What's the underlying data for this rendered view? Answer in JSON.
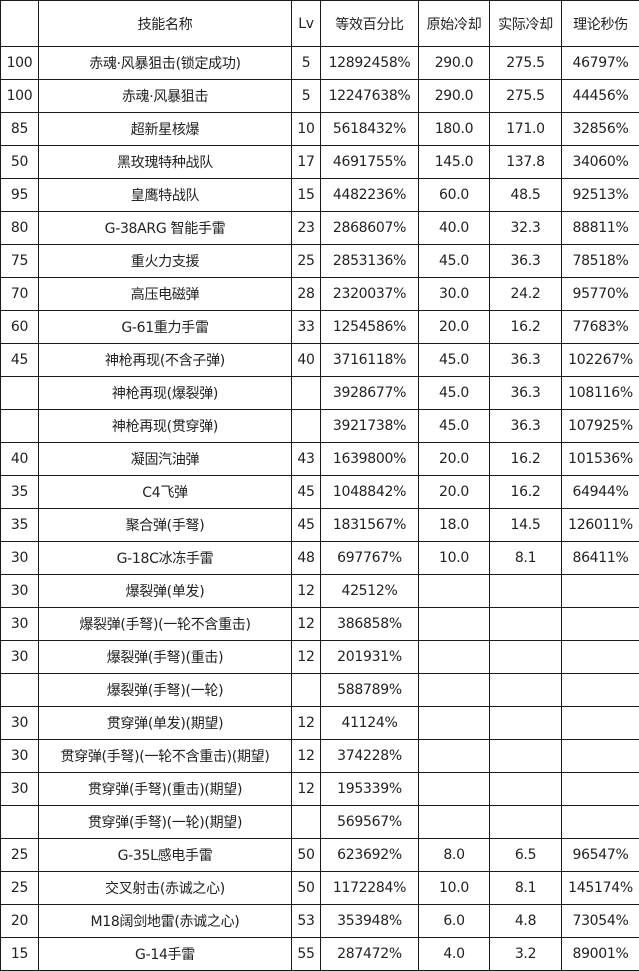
{
  "table": {
    "headers": [
      "",
      "技能名称",
      "Lv",
      "等效百分比",
      "原始冷却",
      "实际冷却",
      "理论秒伤"
    ],
    "rows": [
      [
        "100",
        "赤魂·风暴狙击(锁定成功)",
        "5",
        "12892458%",
        "290.0",
        "275.5",
        "46797%"
      ],
      [
        "100",
        "赤魂·风暴狙击",
        "5",
        "12247638%",
        "290.0",
        "275.5",
        "44456%"
      ],
      [
        "85",
        "超新星核爆",
        "10",
        "5618432%",
        "180.0",
        "171.0",
        "32856%"
      ],
      [
        "50",
        "黑玫瑰特种战队",
        "17",
        "4691755%",
        "145.0",
        "137.8",
        "34060%"
      ],
      [
        "95",
        "皇鹰特战队",
        "15",
        "4482236%",
        "60.0",
        "48.5",
        "92513%"
      ],
      [
        "80",
        "G-38ARG 智能手雷",
        "23",
        "2868607%",
        "40.0",
        "32.3",
        "88811%"
      ],
      [
        "75",
        "重火力支援",
        "25",
        "2853136%",
        "45.0",
        "36.3",
        "78518%"
      ],
      [
        "70",
        "高压电磁弹",
        "28",
        "2320037%",
        "30.0",
        "24.2",
        "95770%"
      ],
      [
        "60",
        "G-61重力手雷",
        "33",
        "1254586%",
        "20.0",
        "16.2",
        "77683%"
      ],
      [
        "45",
        "神枪再现(不含子弹)",
        "40",
        "3716118%",
        "45.0",
        "36.3",
        "102267%"
      ],
      [
        "",
        "神枪再现(爆裂弹)",
        "",
        "3928677%",
        "45.0",
        "36.3",
        "108116%"
      ],
      [
        "",
        "神枪再现(贯穿弹)",
        "",
        "3921738%",
        "45.0",
        "36.3",
        "107925%"
      ],
      [
        "40",
        "凝固汽油弹",
        "43",
        "1639800%",
        "20.0",
        "16.2",
        "101536%"
      ],
      [
        "35",
        "C4飞弹",
        "45",
        "1048842%",
        "20.0",
        "16.2",
        "64944%"
      ],
      [
        "35",
        "聚合弹(手弩)",
        "45",
        "1831567%",
        "18.0",
        "14.5",
        "126011%"
      ],
      [
        "30",
        "G-18C冰冻手雷",
        "48",
        "697767%",
        "10.0",
        "8.1",
        "86411%"
      ],
      [
        "30",
        "爆裂弹(单发)",
        "12",
        "42512%",
        "",
        "",
        ""
      ],
      [
        "30",
        "爆裂弹(手弩)(一轮不含重击)",
        "12",
        "386858%",
        "",
        "",
        ""
      ],
      [
        "30",
        "爆裂弹(手弩)(重击)",
        "12",
        "201931%",
        "",
        "",
        ""
      ],
      [
        "",
        "爆裂弹(手弩)(一轮)",
        "",
        "588789%",
        "",
        "",
        ""
      ],
      [
        "30",
        "贯穿弹(单发)(期望)",
        "12",
        "41124%",
        "",
        "",
        ""
      ],
      [
        "30",
        "贯穿弹(手弩)(一轮不含重击)(期望)",
        "12",
        "374228%",
        "",
        "",
        ""
      ],
      [
        "30",
        "贯穿弹(手弩)(重击)(期望)",
        "12",
        "195339%",
        "",
        "",
        ""
      ],
      [
        "",
        "贯穿弹(手弩)(一轮)(期望)",
        "",
        "569567%",
        "",
        "",
        ""
      ],
      [
        "25",
        "G-35L感电手雷",
        "50",
        "623692%",
        "8.0",
        "6.5",
        "96547%"
      ],
      [
        "25",
        "交叉射击(赤诚之心)",
        "50",
        "1172284%",
        "10.0",
        "8.1",
        "145174%"
      ],
      [
        "20",
        "M18阔剑地雷(赤诚之心)",
        "53",
        "353948%",
        "6.0",
        "4.8",
        "73054%"
      ],
      [
        "15",
        "G-14手雷",
        "55",
        "287472%",
        "4.0",
        "3.2",
        "89001%"
      ]
    ]
  }
}
